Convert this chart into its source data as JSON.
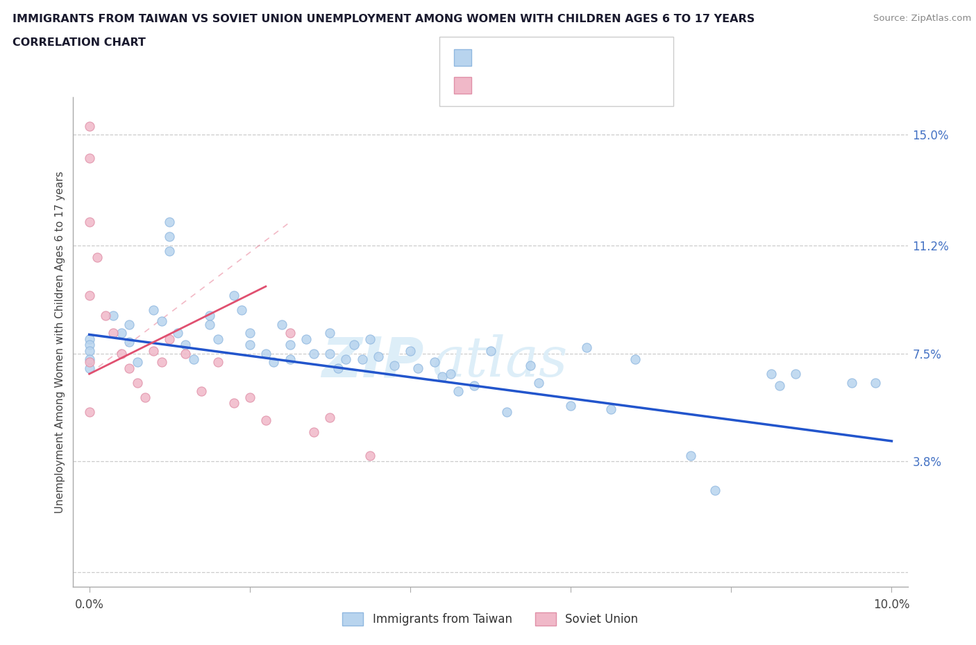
{
  "title_line1": "IMMIGRANTS FROM TAIWAN VS SOVIET UNION UNEMPLOYMENT AMONG WOMEN WITH CHILDREN AGES 6 TO 17 YEARS",
  "title_line2": "CORRELATION CHART",
  "source": "Source: ZipAtlas.com",
  "ylabel": "Unemployment Among Women with Children Ages 6 to 17 years",
  "xlim": [
    -0.002,
    0.102
  ],
  "ylim": [
    -0.005,
    0.163
  ],
  "ytick_positions": [
    0.0,
    0.038,
    0.075,
    0.112,
    0.15
  ],
  "ytick_labels": [
    "",
    "3.8%",
    "7.5%",
    "11.2%",
    "15.0%"
  ],
  "xtick_positions": [
    0.0,
    0.02,
    0.04,
    0.06,
    0.08,
    0.1
  ],
  "xtick_labels": [
    "0.0%",
    "",
    "",
    "",
    "",
    "10.0%"
  ],
  "taiwan_color": "#b8d4ee",
  "taiwan_edge": "#90b8e0",
  "soviet_color": "#f0b8c8",
  "soviet_edge": "#e090a8",
  "trend_taiwan_color": "#2255cc",
  "trend_soviet_color": "#e05070",
  "taiwan_scatter_x": [
    0.0,
    0.0,
    0.0,
    0.0,
    0.0,
    0.003,
    0.004,
    0.005,
    0.005,
    0.006,
    0.008,
    0.009,
    0.01,
    0.01,
    0.01,
    0.011,
    0.012,
    0.013,
    0.015,
    0.015,
    0.016,
    0.018,
    0.019,
    0.02,
    0.02,
    0.022,
    0.023,
    0.024,
    0.025,
    0.025,
    0.027,
    0.028,
    0.03,
    0.03,
    0.031,
    0.032,
    0.033,
    0.034,
    0.035,
    0.036,
    0.038,
    0.04,
    0.041,
    0.043,
    0.044,
    0.045,
    0.046,
    0.048,
    0.05,
    0.052,
    0.055,
    0.056,
    0.06,
    0.062,
    0.065,
    0.068,
    0.075,
    0.078,
    0.085,
    0.086,
    0.088,
    0.095,
    0.098
  ],
  "taiwan_scatter_y": [
    0.08,
    0.078,
    0.076,
    0.073,
    0.07,
    0.088,
    0.082,
    0.085,
    0.079,
    0.072,
    0.09,
    0.086,
    0.12,
    0.115,
    0.11,
    0.082,
    0.078,
    0.073,
    0.088,
    0.085,
    0.08,
    0.095,
    0.09,
    0.082,
    0.078,
    0.075,
    0.072,
    0.085,
    0.078,
    0.073,
    0.08,
    0.075,
    0.082,
    0.075,
    0.07,
    0.073,
    0.078,
    0.073,
    0.08,
    0.074,
    0.071,
    0.076,
    0.07,
    0.072,
    0.067,
    0.068,
    0.062,
    0.064,
    0.076,
    0.055,
    0.071,
    0.065,
    0.057,
    0.077,
    0.056,
    0.073,
    0.04,
    0.028,
    0.068,
    0.064,
    0.068,
    0.065,
    0.065
  ],
  "soviet_scatter_x": [
    0.0,
    0.0,
    0.0,
    0.0,
    0.0,
    0.0,
    0.001,
    0.002,
    0.003,
    0.004,
    0.005,
    0.006,
    0.007,
    0.008,
    0.009,
    0.01,
    0.012,
    0.014,
    0.016,
    0.018,
    0.02,
    0.022,
    0.025,
    0.028,
    0.03,
    0.035
  ],
  "soviet_scatter_y": [
    0.153,
    0.142,
    0.12,
    0.095,
    0.072,
    0.055,
    0.108,
    0.088,
    0.082,
    0.075,
    0.07,
    0.065,
    0.06,
    0.076,
    0.072,
    0.08,
    0.075,
    0.062,
    0.072,
    0.058,
    0.06,
    0.052,
    0.082,
    0.048,
    0.053,
    0.04
  ],
  "taiwan_trend_x0": 0.0,
  "taiwan_trend_y0": 0.0815,
  "taiwan_trend_x1": 0.1,
  "taiwan_trend_y1": 0.045,
  "soviet_trend_x0": 0.0,
  "soviet_trend_y0": 0.068,
  "soviet_trend_x1": 0.022,
  "soviet_trend_y1": 0.098
}
